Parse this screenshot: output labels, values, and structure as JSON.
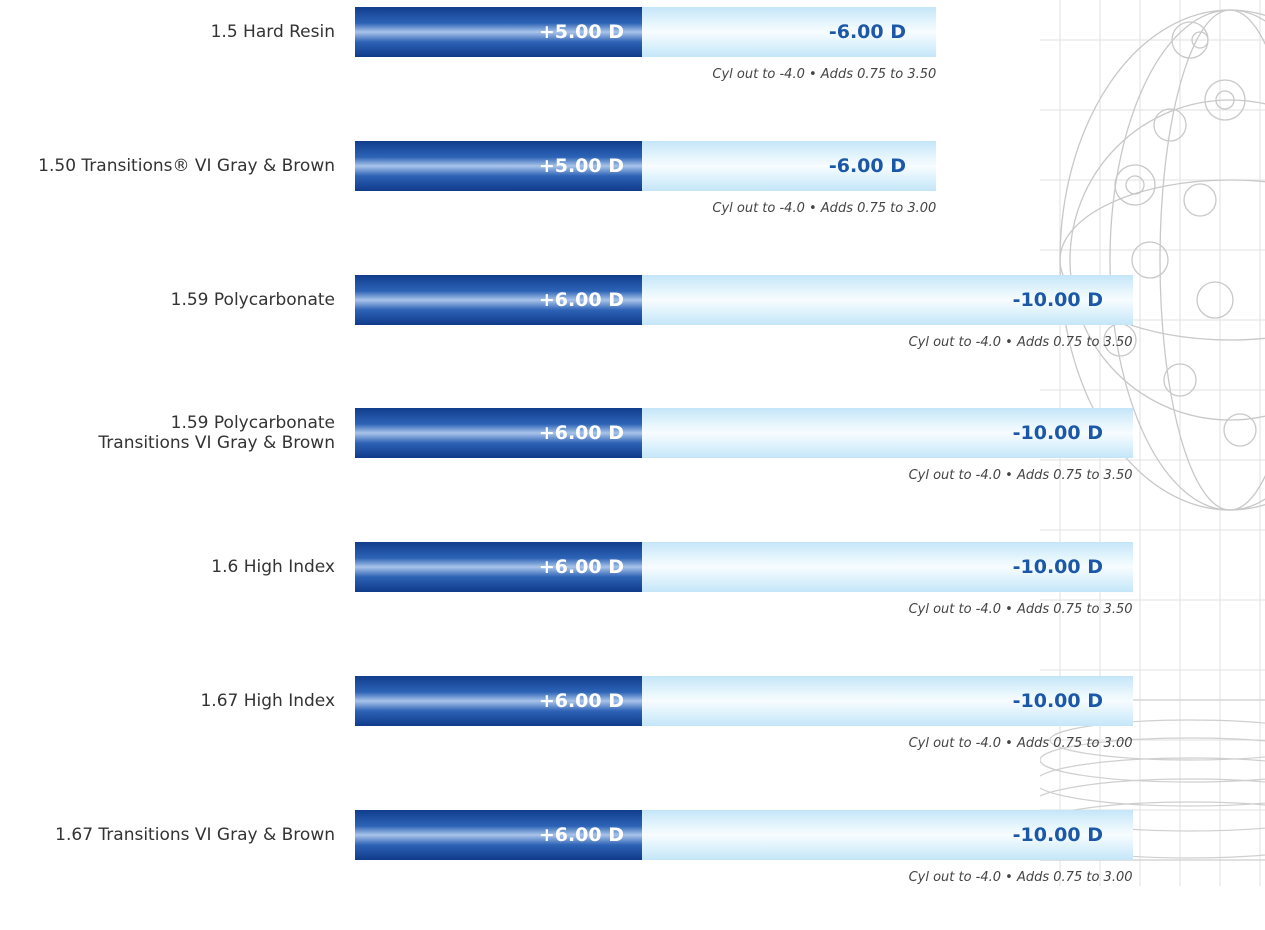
{
  "chart_data": {
    "type": "bar",
    "title": "",
    "xlabel": "",
    "ylabel": "",
    "categories": [
      "1.5 Hard Resin",
      "1.50 Transitions® VI Gray & Brown",
      "1.59 Polycarbonate",
      "1.59 Polycarbonate\nTransitions VI Gray & Brown",
      "1.6 High Index",
      "1.67 High Index",
      "1.67 Transitions VI Gray & Brown"
    ],
    "series": [
      {
        "values": [
          5.0,
          5.0,
          6.0,
          6.0,
          6.0,
          6.0,
          6.0
        ],
        "labels": [
          "+5.00 D",
          "+5.00 D",
          "+6.00 D",
          "+6.00 D",
          "+6.00 D",
          "+6.00 D",
          "+6.00 D"
        ]
      },
      {
        "values": [
          -6.0,
          -6.0,
          -10.0,
          -10.0,
          -10.0,
          -10.0,
          -10.0
        ],
        "labels": [
          "-6.00 D",
          "-6.00 D",
          "-10.00 D",
          "-10.00 D",
          "-10.00 D",
          "-10.00 D",
          "-10.00 D"
        ]
      }
    ],
    "notes": [
      "Cyl out to -4.0 • Adds 0.75 to 3.50",
      "Cyl out to -4.0 • Adds 0.75 to 3.00",
      "Cyl out to -4.0 • Adds 0.75 to 3.50",
      "Cyl out to -4.0 • Adds 0.75 to 3.50",
      "Cyl out to -4.0 • Adds 0.75 to 3.50",
      "Cyl out to -4.0 • Adds 0.75 to 3.00",
      "Cyl out to -4.0 • Adds 0.75 to 3.00"
    ]
  },
  "colors": {
    "plus_bar": "#2c63b6",
    "minus_bar": "#e2f4fd",
    "minus_text": "#1b58a8",
    "label_text": "#333333"
  },
  "background_icon": "wireframe-globe-icon"
}
